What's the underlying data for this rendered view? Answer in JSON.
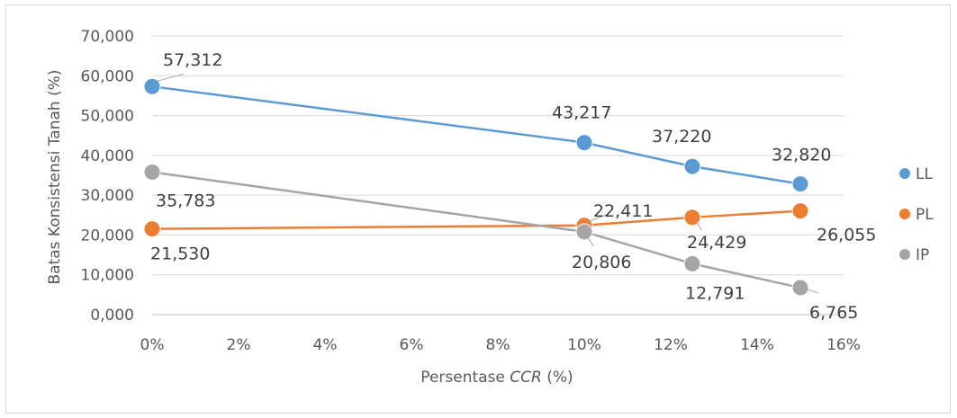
{
  "chart_data": {
    "type": "line",
    "xlabel": "Persentase CCR (%)",
    "ylabel": "Batas Konsistensi Tanah (%)",
    "x": [
      0,
      10,
      12.5,
      15
    ],
    "xlim": [
      0,
      16
    ],
    "ylim": [
      0,
      70
    ],
    "x_ticks": [
      "0%",
      "2%",
      "4%",
      "6%",
      "8%",
      "10%",
      "12%",
      "14%",
      "16%"
    ],
    "y_ticks": [
      "0,000",
      "10,000",
      "20,000",
      "30,000",
      "40,000",
      "50,000",
      "60,000",
      "70,000"
    ],
    "grid": true,
    "legend_position": "right",
    "series": [
      {
        "name": "LL",
        "color": "#5b9bd5",
        "values": [
          57.312,
          43.217,
          37.22,
          32.82
        ],
        "labels": [
          "57,312",
          "43,217",
          "37,220",
          "32,820"
        ]
      },
      {
        "name": "PL",
        "color": "#ed7d31",
        "values": [
          21.53,
          22.411,
          24.429,
          26.055
        ],
        "labels": [
          "21,530",
          "22,411",
          "24,429",
          "26,055"
        ]
      },
      {
        "name": "IP",
        "color": "#a5a5a5",
        "values": [
          35.783,
          20.806,
          12.791,
          6.765
        ],
        "labels": [
          "35,783",
          "20,806",
          "12,791",
          "6,765"
        ]
      }
    ]
  }
}
